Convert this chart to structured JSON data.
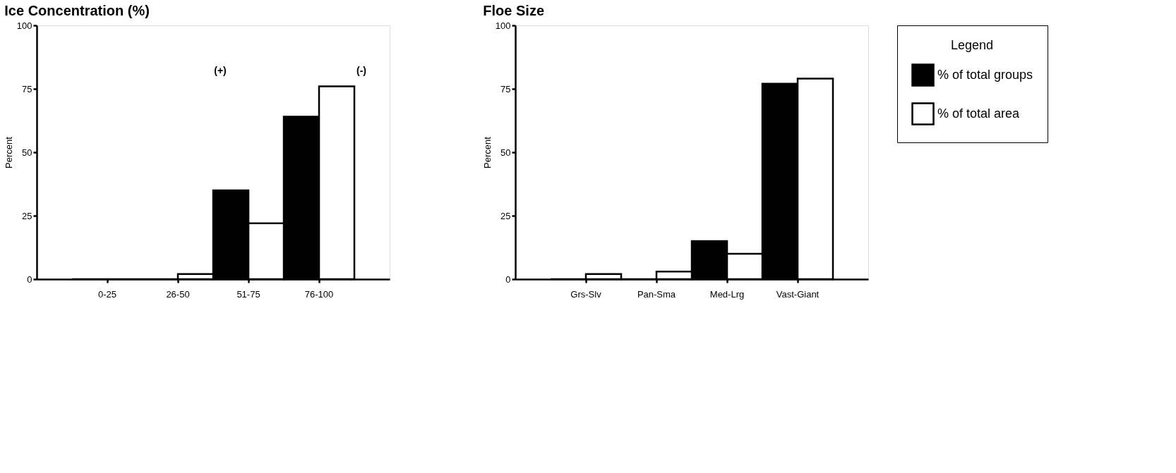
{
  "chart_data": [
    {
      "type": "bar",
      "title": "Ice Concentration (%)",
      "ylabel": "Percent",
      "categories": [
        "0-25",
        "26-50",
        "51-75",
        "76-100"
      ],
      "ylim": [
        0,
        100
      ],
      "yticks": [
        0,
        25,
        50,
        75,
        100
      ],
      "grid": false,
      "legend": "top right",
      "series": [
        {
          "name": "% of total groups",
          "color": "#000000",
          "values": [
            0,
            0,
            35,
            64
          ]
        },
        {
          "name": "% of total area",
          "color": "#ffffff",
          "values": [
            0,
            2,
            22,
            76
          ]
        }
      ],
      "annotations": [
        "(+)",
        "(-)"
      ]
    },
    {
      "type": "bar",
      "title": "Floe Size",
      "ylabel": "Percent",
      "categories": [
        "Grs-Slv",
        "Pan-Sma",
        "Med-Lrg",
        "Vast-Giant"
      ],
      "ylim": [
        0,
        100
      ],
      "yticks": [
        0,
        25,
        50,
        75,
        100
      ],
      "grid": false,
      "legend": "top right",
      "legend_title": "Legend",
      "series": [
        {
          "name": "% of total groups",
          "color": "#000000",
          "values": [
            0,
            0,
            15,
            77
          ]
        },
        {
          "name": "% of total area",
          "color": "#ffffff",
          "values": [
            2,
            3,
            10,
            79
          ]
        }
      ]
    }
  ]
}
